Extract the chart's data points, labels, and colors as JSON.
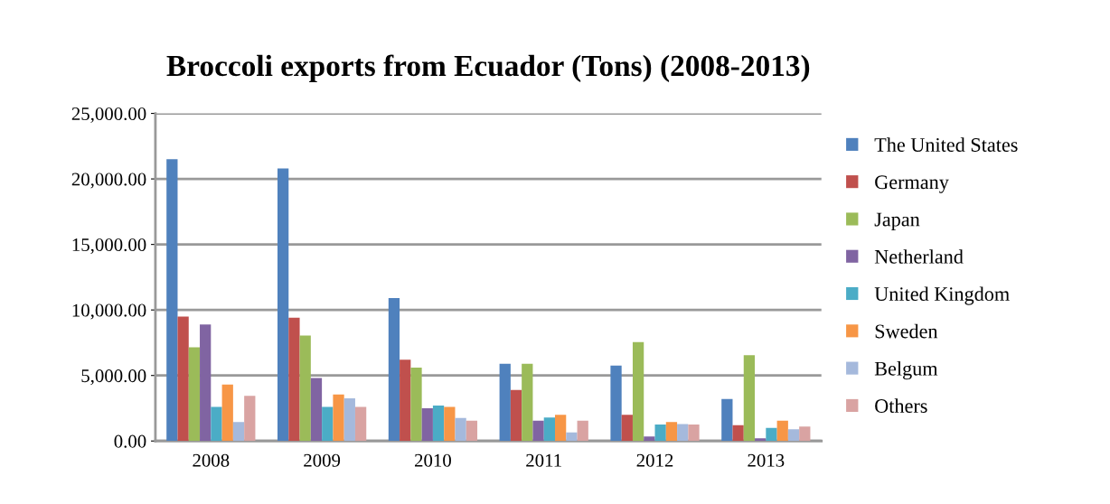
{
  "chart_data": {
    "type": "bar",
    "title": "Broccoli exports from Ecuador (Tons) (2008-2013)",
    "categories": [
      "2008",
      "2009",
      "2010",
      "2011",
      "2012",
      "2013"
    ],
    "series": [
      {
        "name": "The United States",
        "color": "#4f81bd",
        "values": [
          21500,
          20800,
          10900,
          5900,
          5750,
          3200
        ]
      },
      {
        "name": "Germany",
        "color": "#c0504d",
        "values": [
          9500,
          9400,
          6200,
          3900,
          2000,
          1200
        ]
      },
      {
        "name": "Japan",
        "color": "#9bbb59",
        "values": [
          7150,
          8050,
          5600,
          5900,
          7550,
          6550
        ]
      },
      {
        "name": "Netherland",
        "color": "#8064a2",
        "values": [
          8900,
          4800,
          2500,
          1550,
          350,
          200
        ]
      },
      {
        "name": "United Kingdom",
        "color": "#4bacc6",
        "values": [
          2600,
          2600,
          2700,
          1800,
          1250,
          1000
        ]
      },
      {
        "name": "Sweden",
        "color": "#f79646",
        "values": [
          4300,
          3550,
          2600,
          2000,
          1450,
          1550
        ]
      },
      {
        "name": "Belgum",
        "color": "#a5b9dc",
        "values": [
          1450,
          3250,
          1750,
          650,
          1300,
          900
        ]
      },
      {
        "name": "Others",
        "color": "#d9a3a2",
        "values": [
          3450,
          2600,
          1550,
          1550,
          1250,
          1100
        ]
      }
    ],
    "ylim": [
      0,
      25000
    ],
    "yticks": [
      {
        "value": 0,
        "label": "0.00"
      },
      {
        "value": 5000,
        "label": "5,000.00"
      },
      {
        "value": 10000,
        "label": "10,000.00"
      },
      {
        "value": 15000,
        "label": "15,000.00"
      },
      {
        "value": 20000,
        "label": "20,000.00"
      },
      {
        "value": 25000,
        "label": "25,000.00"
      }
    ],
    "grid": "y",
    "legend": "right"
  }
}
